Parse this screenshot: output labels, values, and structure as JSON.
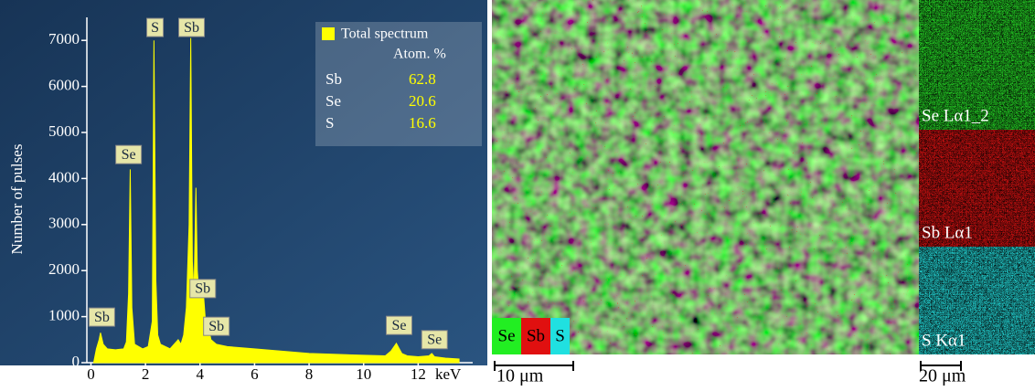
{
  "chart_data": {
    "type": "area",
    "y_label": "Number of pulses",
    "x_label": "keV",
    "x": [
      0.1,
      0.2,
      0.3,
      0.35,
      0.45,
      0.6,
      0.9,
      1.2,
      1.3,
      1.38,
      1.44,
      1.5,
      1.6,
      1.9,
      2.1,
      2.25,
      2.31,
      2.38,
      2.45,
      2.55,
      2.9,
      3.2,
      3.3,
      3.4,
      3.5,
      3.6,
      3.66,
      3.72,
      3.78,
      3.85,
      3.9,
      3.95,
      4.05,
      4.1,
      4.2,
      4.3,
      4.4,
      4.6,
      5,
      6,
      7,
      8,
      9,
      10,
      10.8,
      11.0,
      11.2,
      11.4,
      11.6,
      12,
      12.4,
      12.5,
      12.6,
      13,
      13.5
    ],
    "series": [
      {
        "name": "Total spectrum",
        "color": "#ffff00",
        "values": [
          0,
          300,
          500,
          650,
          400,
          300,
          280,
          300,
          450,
          1500,
          4200,
          1200,
          400,
          300,
          350,
          900,
          7000,
          1800,
          600,
          400,
          300,
          500,
          400,
          600,
          1200,
          3000,
          7050,
          2200,
          1500,
          3800,
          2000,
          1600,
          1400,
          1700,
          900,
          800,
          500,
          400,
          350,
          300,
          250,
          200,
          180,
          160,
          150,
          250,
          420,
          200,
          150,
          130,
          150,
          200,
          130,
          100,
          80
        ]
      }
    ],
    "xlim": [
      -0.15,
      14
    ],
    "ylim": [
      0,
      7500
    ],
    "xticks": [
      0,
      2,
      4,
      6,
      8,
      10,
      12
    ],
    "yticks": [
      0,
      1000,
      2000,
      3000,
      4000,
      5000,
      6000,
      7000
    ],
    "annotations": [
      {
        "text": "Sb",
        "x": 0.4,
        "y": 990
      },
      {
        "text": "Se",
        "x": 1.38,
        "y": 4520
      },
      {
        "text": "S",
        "x": 2.35,
        "y": 7280
      },
      {
        "text": "Sb",
        "x": 3.69,
        "y": 7280
      },
      {
        "text": "Sb",
        "x": 4.1,
        "y": 1610
      },
      {
        "text": "Sb",
        "x": 4.6,
        "y": 790
      },
      {
        "text": "Se",
        "x": 11.3,
        "y": 810
      },
      {
        "text": "Se",
        "x": 12.6,
        "y": 500
      }
    ],
    "legend_table": {
      "header": "Atom. %",
      "rows": [
        [
          "Sb",
          "62.8"
        ],
        [
          "Se",
          "20.6"
        ],
        [
          "S",
          "16.6"
        ]
      ]
    }
  },
  "maps": {
    "overlay_legend": [
      {
        "label": "Se",
        "color": "#22ee22"
      },
      {
        "label": "Sb",
        "color": "#e01010"
      },
      {
        "label": "S",
        "color": "#20e0e0"
      }
    ],
    "panels": [
      {
        "label": "Se Lα1_2",
        "color": "#22c022"
      },
      {
        "label": "Sb Lα1",
        "color": "#c01010"
      },
      {
        "label": "S Kα1",
        "color": "#20c0c0"
      }
    ],
    "scale_bars": [
      "10 μm",
      "20 μm"
    ]
  }
}
